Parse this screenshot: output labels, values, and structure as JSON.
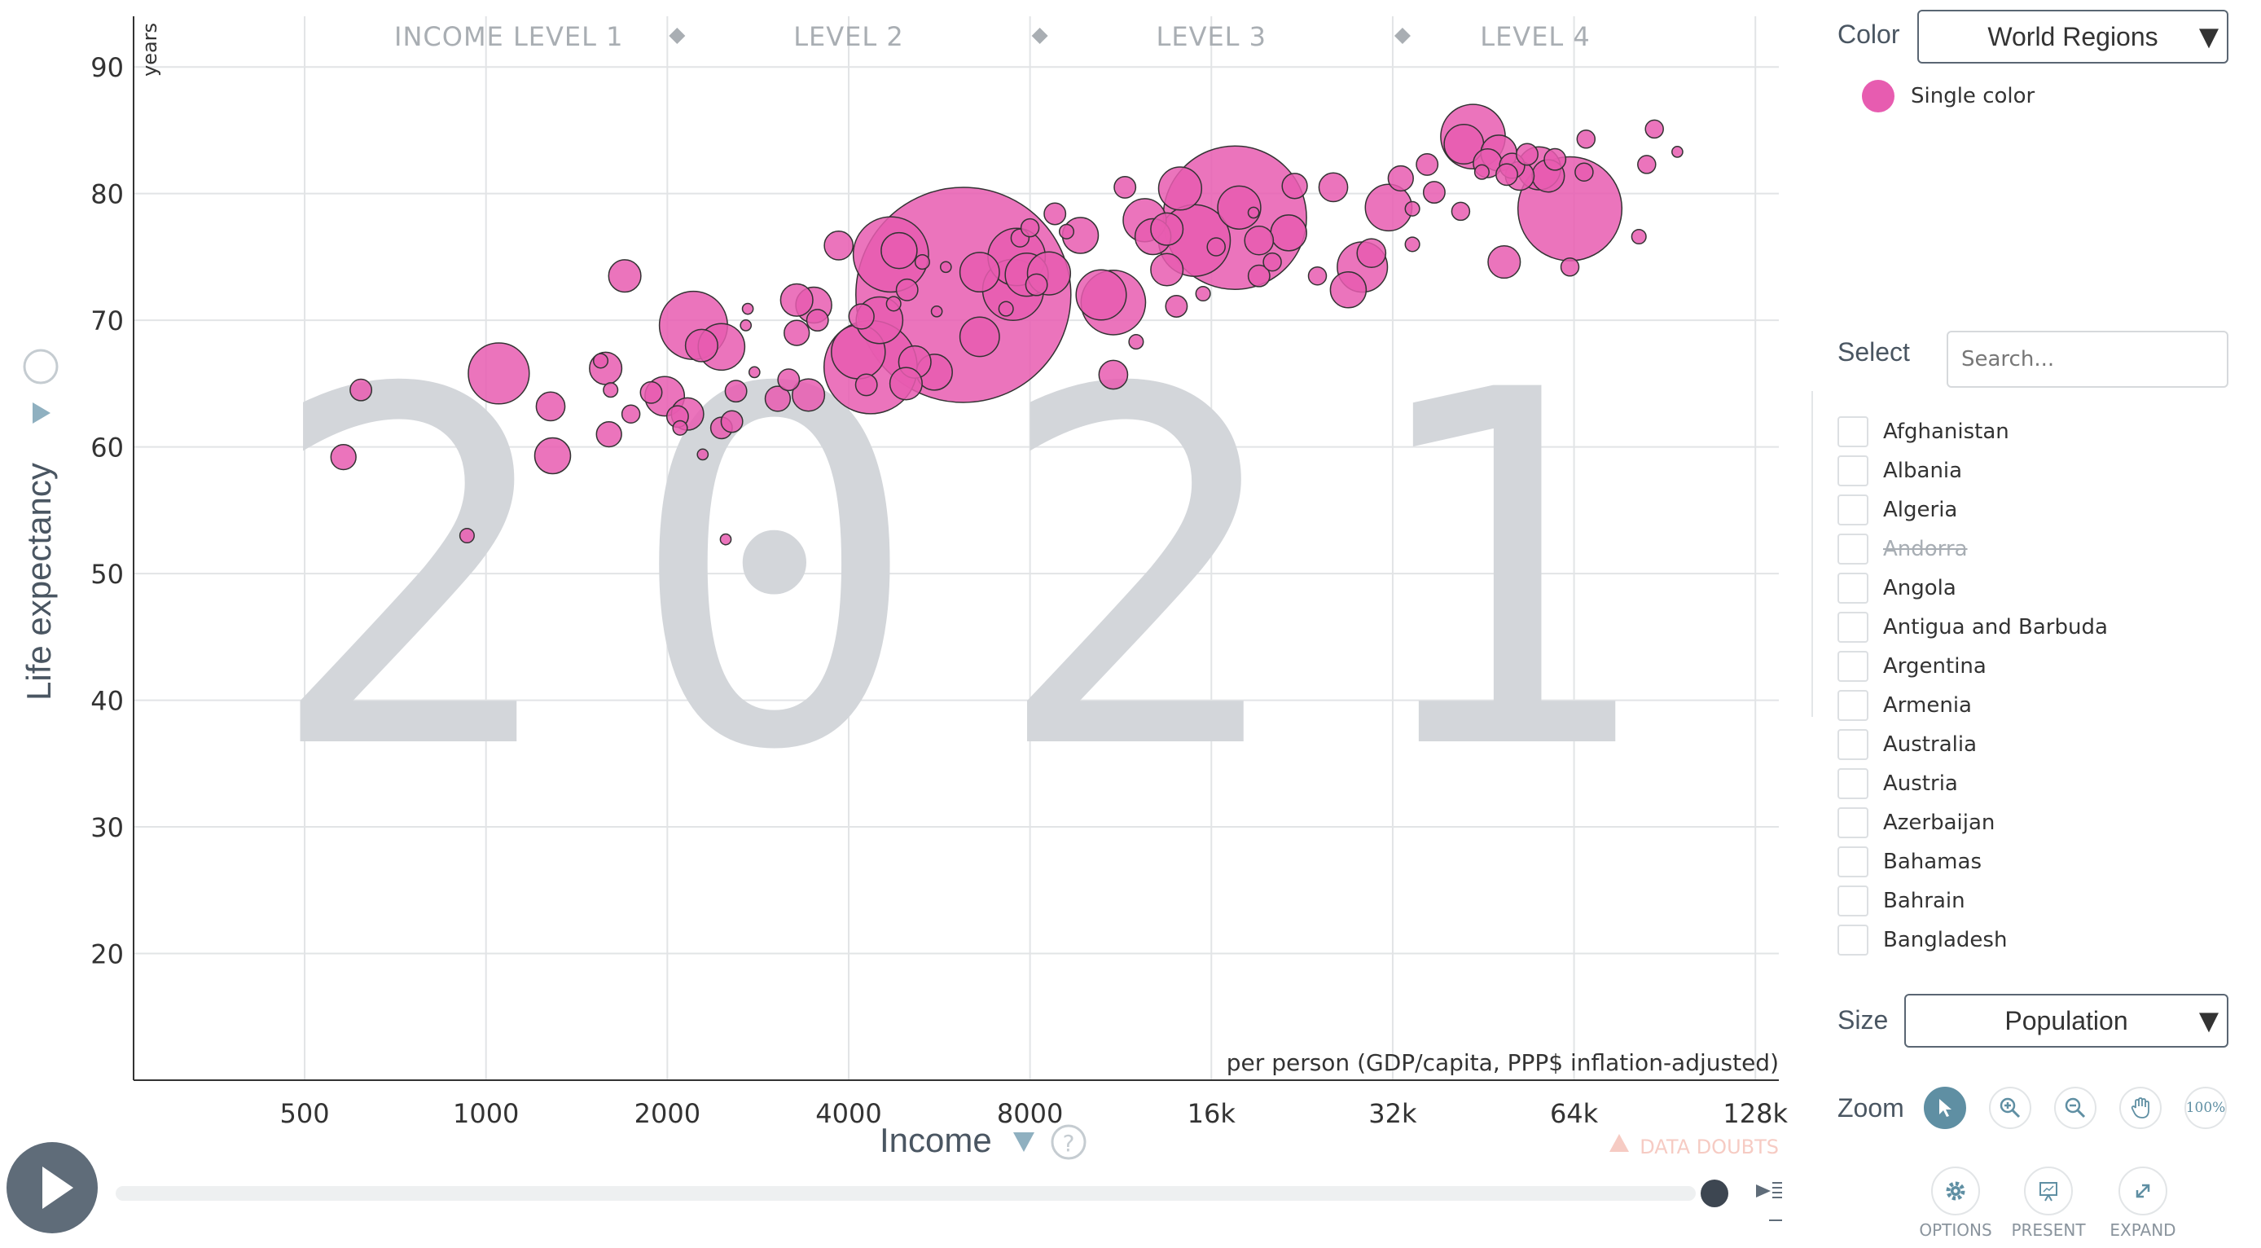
{
  "chart_data": {
    "type": "scatter",
    "title": "",
    "year": "2021",
    "xlabel": "Income",
    "xunit": "per person (GDP/capita, PPP$ inflation-adjusted)",
    "ylabel": "Life expectancy",
    "yunit": "years",
    "xscale": "log2",
    "xlim": [
      260,
      140000
    ],
    "ylim": [
      10,
      94
    ],
    "xticks": [
      500,
      1000,
      2000,
      4000,
      8000,
      16000,
      32000,
      64000,
      128000
    ],
    "xtick_labels": [
      "500",
      "1000",
      "2000",
      "4000",
      "8000",
      "16k",
      "32k",
      "64k",
      "128k"
    ],
    "yticks": [
      20,
      30,
      40,
      50,
      60,
      70,
      80,
      90
    ],
    "ytick_labels": [
      "20",
      "30",
      "40",
      "50",
      "60",
      "70",
      "80",
      "90"
    ],
    "income_levels": [
      "INCOME LEVEL 1",
      "LEVEL 2",
      "LEVEL 3",
      "LEVEL 4"
    ],
    "level_boundaries": [
      2000,
      8000,
      32000
    ],
    "bubble_color": "#e75cb0",
    "data_doubts_label": "DATA DOUBTS",
    "points": [
      {
        "x": 620,
        "y": 64.5,
        "s": 6
      },
      {
        "x": 580,
        "y": 59.2,
        "s": 7
      },
      {
        "x": 930,
        "y": 53.0,
        "s": 4
      },
      {
        "x": 1050,
        "y": 65.8,
        "s": 17
      },
      {
        "x": 1280,
        "y": 63.2,
        "s": 8
      },
      {
        "x": 1290,
        "y": 59.3,
        "s": 10
      },
      {
        "x": 1550,
        "y": 66.8,
        "s": 4
      },
      {
        "x": 1700,
        "y": 73.5,
        "s": 9
      },
      {
        "x": 1580,
        "y": 66.2,
        "s": 9
      },
      {
        "x": 1610,
        "y": 64.5,
        "s": 4
      },
      {
        "x": 1740,
        "y": 62.6,
        "s": 5
      },
      {
        "x": 1600,
        "y": 61.0,
        "s": 7
      },
      {
        "x": 1880,
        "y": 64.3,
        "s": 6
      },
      {
        "x": 1980,
        "y": 64.0,
        "s": 11
      },
      {
        "x": 2210,
        "y": 69.6,
        "s": 19
      },
      {
        "x": 2160,
        "y": 62.6,
        "s": 9
      },
      {
        "x": 2080,
        "y": 62.4,
        "s": 6
      },
      {
        "x": 2280,
        "y": 68.0,
        "s": 9
      },
      {
        "x": 2460,
        "y": 67.9,
        "s": 13
      },
      {
        "x": 2100,
        "y": 61.5,
        "s": 4
      },
      {
        "x": 2290,
        "y": 59.4,
        "s": 3
      },
      {
        "x": 2460,
        "y": 61.5,
        "s": 6
      },
      {
        "x": 2560,
        "y": 62.0,
        "s": 6
      },
      {
        "x": 2600,
        "y": 64.4,
        "s": 6
      },
      {
        "x": 2500,
        "y": 52.7,
        "s": 3
      },
      {
        "x": 2720,
        "y": 70.9,
        "s": 3
      },
      {
        "x": 2700,
        "y": 69.6,
        "s": 3
      },
      {
        "x": 2790,
        "y": 65.9,
        "s": 3
      },
      {
        "x": 3050,
        "y": 63.8,
        "s": 7
      },
      {
        "x": 3180,
        "y": 65.3,
        "s": 6
      },
      {
        "x": 3280,
        "y": 71.6,
        "s": 9
      },
      {
        "x": 3280,
        "y": 69.0,
        "s": 7
      },
      {
        "x": 3500,
        "y": 71.2,
        "s": 10
      },
      {
        "x": 3430,
        "y": 64.1,
        "s": 9
      },
      {
        "x": 3550,
        "y": 70.0,
        "s": 6
      },
      {
        "x": 3850,
        "y": 75.9,
        "s": 8
      },
      {
        "x": 4200,
        "y": 70.3,
        "s": 7
      },
      {
        "x": 4350,
        "y": 66.3,
        "s": 26
      },
      {
        "x": 4150,
        "y": 67.5,
        "s": 15
      },
      {
        "x": 4280,
        "y": 64.9,
        "s": 6
      },
      {
        "x": 4700,
        "y": 75.2,
        "s": 21
      },
      {
        "x": 4850,
        "y": 75.5,
        "s": 10
      },
      {
        "x": 4500,
        "y": 70.0,
        "s": 13
      },
      {
        "x": 4750,
        "y": 71.3,
        "s": 4
      },
      {
        "x": 5000,
        "y": 72.4,
        "s": 6
      },
      {
        "x": 5150,
        "y": 66.7,
        "s": 9
      },
      {
        "x": 4980,
        "y": 65.0,
        "s": 9
      },
      {
        "x": 5550,
        "y": 65.9,
        "s": 10
      },
      {
        "x": 5300,
        "y": 74.6,
        "s": 4
      },
      {
        "x": 5800,
        "y": 74.2,
        "s": 3
      },
      {
        "x": 5600,
        "y": 70.7,
        "s": 3
      },
      {
        "x": 6600,
        "y": 73.8,
        "s": 11
      },
      {
        "x": 6600,
        "y": 68.7,
        "s": 11
      },
      {
        "x": 6200,
        "y": 72.0,
        "s": 60
      },
      {
        "x": 7300,
        "y": 70.9,
        "s": 4
      },
      {
        "x": 7600,
        "y": 75.0,
        "s": 16
      },
      {
        "x": 7500,
        "y": 72.4,
        "s": 17
      },
      {
        "x": 7700,
        "y": 76.5,
        "s": 5
      },
      {
        "x": 7900,
        "y": 73.6,
        "s": 12
      },
      {
        "x": 8600,
        "y": 73.7,
        "s": 12
      },
      {
        "x": 8200,
        "y": 72.8,
        "s": 6
      },
      {
        "x": 8000,
        "y": 77.3,
        "s": 5
      },
      {
        "x": 8800,
        "y": 78.4,
        "s": 6
      },
      {
        "x": 9200,
        "y": 77.0,
        "s": 4
      },
      {
        "x": 9700,
        "y": 76.7,
        "s": 10
      },
      {
        "x": 10500,
        "y": 72.0,
        "s": 14
      },
      {
        "x": 11000,
        "y": 71.4,
        "s": 18
      },
      {
        "x": 12000,
        "y": 68.3,
        "s": 4
      },
      {
        "x": 11000,
        "y": 65.7,
        "s": 8
      },
      {
        "x": 11500,
        "y": 80.5,
        "s": 6
      },
      {
        "x": 12400,
        "y": 77.9,
        "s": 12
      },
      {
        "x": 12800,
        "y": 76.6,
        "s": 10
      },
      {
        "x": 13500,
        "y": 77.2,
        "s": 9
      },
      {
        "x": 14200,
        "y": 80.4,
        "s": 12
      },
      {
        "x": 13500,
        "y": 74.0,
        "s": 9
      },
      {
        "x": 15000,
        "y": 76.3,
        "s": 20
      },
      {
        "x": 14000,
        "y": 71.1,
        "s": 6
      },
      {
        "x": 15500,
        "y": 72.1,
        "s": 4
      },
      {
        "x": 16300,
        "y": 75.8,
        "s": 5
      },
      {
        "x": 17800,
        "y": 78.9,
        "s": 12
      },
      {
        "x": 17500,
        "y": 78.1,
        "s": 40
      },
      {
        "x": 18800,
        "y": 78.5,
        "s": 3
      },
      {
        "x": 19200,
        "y": 76.3,
        "s": 8
      },
      {
        "x": 19200,
        "y": 73.5,
        "s": 6
      },
      {
        "x": 20200,
        "y": 74.6,
        "s": 5
      },
      {
        "x": 21500,
        "y": 76.9,
        "s": 10
      },
      {
        "x": 22000,
        "y": 80.6,
        "s": 7
      },
      {
        "x": 24000,
        "y": 73.5,
        "s": 5
      },
      {
        "x": 25500,
        "y": 80.5,
        "s": 8
      },
      {
        "x": 27000,
        "y": 72.4,
        "s": 10
      },
      {
        "x": 28500,
        "y": 74.2,
        "s": 14
      },
      {
        "x": 29500,
        "y": 75.3,
        "s": 8
      },
      {
        "x": 31500,
        "y": 78.9,
        "s": 13
      },
      {
        "x": 33000,
        "y": 81.2,
        "s": 7
      },
      {
        "x": 34500,
        "y": 76.0,
        "s": 4
      },
      {
        "x": 34500,
        "y": 78.8,
        "s": 4
      },
      {
        "x": 36500,
        "y": 82.3,
        "s": 6
      },
      {
        "x": 37500,
        "y": 80.1,
        "s": 6
      },
      {
        "x": 41500,
        "y": 78.6,
        "s": 5
      },
      {
        "x": 42000,
        "y": 83.9,
        "s": 11
      },
      {
        "x": 43500,
        "y": 84.5,
        "s": 18
      },
      {
        "x": 45000,
        "y": 81.7,
        "s": 4
      },
      {
        "x": 46000,
        "y": 82.4,
        "s": 8
      },
      {
        "x": 48000,
        "y": 83.2,
        "s": 10
      },
      {
        "x": 49500,
        "y": 81.5,
        "s": 6
      },
      {
        "x": 49000,
        "y": 74.6,
        "s": 9
      },
      {
        "x": 50500,
        "y": 82.2,
        "s": 7
      },
      {
        "x": 52000,
        "y": 81.4,
        "s": 8
      },
      {
        "x": 53500,
        "y": 83.1,
        "s": 6
      },
      {
        "x": 56000,
        "y": 82.0,
        "s": 12
      },
      {
        "x": 58000,
        "y": 81.4,
        "s": 9
      },
      {
        "x": 59500,
        "y": 82.7,
        "s": 6
      },
      {
        "x": 63000,
        "y": 78.8,
        "s": 29
      },
      {
        "x": 63000,
        "y": 74.2,
        "s": 5
      },
      {
        "x": 66500,
        "y": 81.7,
        "s": 5
      },
      {
        "x": 67000,
        "y": 84.3,
        "s": 5
      },
      {
        "x": 82000,
        "y": 76.6,
        "s": 4
      },
      {
        "x": 84500,
        "y": 82.3,
        "s": 5
      },
      {
        "x": 87000,
        "y": 85.1,
        "s": 5
      },
      {
        "x": 95000,
        "y": 83.3,
        "s": 3
      }
    ]
  },
  "side_panel": {
    "color_label": "Color",
    "color_dropdown_value": "World Regions",
    "single_color_label": "Single color",
    "select_label": "Select",
    "search_placeholder": "Search...",
    "countries": [
      {
        "name": "Afghanistan",
        "available": true
      },
      {
        "name": "Albania",
        "available": true
      },
      {
        "name": "Algeria",
        "available": true
      },
      {
        "name": "Andorra",
        "available": false
      },
      {
        "name": "Angola",
        "available": true
      },
      {
        "name": "Antigua and Barbuda",
        "available": true
      },
      {
        "name": "Argentina",
        "available": true
      },
      {
        "name": "Armenia",
        "available": true
      },
      {
        "name": "Australia",
        "available": true
      },
      {
        "name": "Austria",
        "available": true
      },
      {
        "name": "Azerbaijan",
        "available": true
      },
      {
        "name": "Bahamas",
        "available": true
      },
      {
        "name": "Bahrain",
        "available": true
      },
      {
        "name": "Bangladesh",
        "available": true
      }
    ],
    "size_label": "Size",
    "size_dropdown_value": "Population",
    "zoom_label": "Zoom",
    "zoom_reset_label": "100%",
    "options_label": "OPTIONS",
    "present_label": "PRESENT",
    "expand_label": "EXPAND"
  }
}
